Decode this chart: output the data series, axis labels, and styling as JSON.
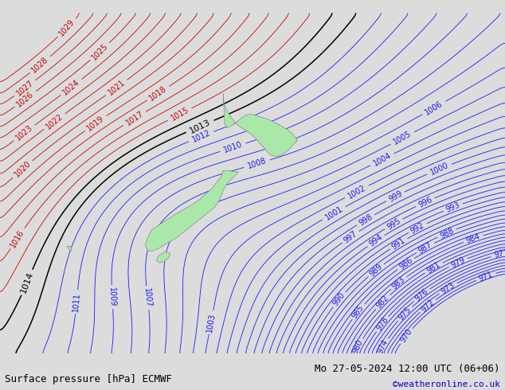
{
  "title_left": "Surface pressure [hPa] ECMWF",
  "title_right": "Mo 27-05-2024 12:00 UTC (06+06)",
  "title_right2": "©weatheronline.co.uk",
  "bg_color": "#dcdcdc",
  "land_color": "#aae8aa",
  "font_size_labels": 7,
  "font_size_bottom": 9,
  "lon_min": 155,
  "lon_max": 195,
  "lat_min": -55,
  "lat_max": -28
}
